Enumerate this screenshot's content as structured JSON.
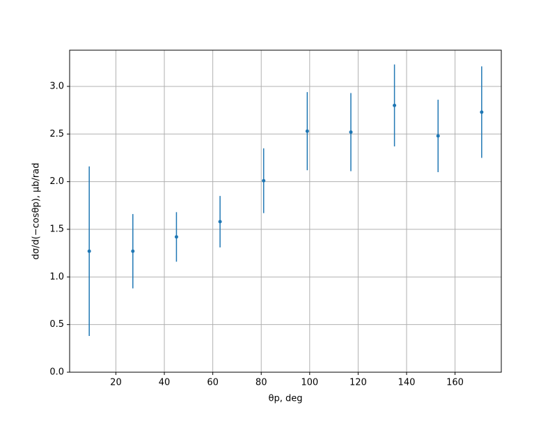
{
  "chart_data": {
    "type": "errorbar",
    "xlabel": "θp, deg",
    "ylabel": "dσ/d(−cosθp), μb/rad",
    "x": [
      9,
      27,
      45,
      63,
      81,
      99,
      117,
      135,
      153,
      171
    ],
    "values": [
      1.27,
      1.27,
      1.42,
      1.58,
      2.01,
      2.53,
      2.52,
      2.8,
      2.48,
      2.73
    ],
    "errors": [
      0.89,
      0.39,
      0.26,
      0.27,
      0.34,
      0.41,
      0.41,
      0.43,
      0.38,
      0.48
    ],
    "color": "#1f77b4",
    "xlim": [
      0.9,
      179.1
    ],
    "ylim": [
      0,
      3.38
    ],
    "xticks": [
      20,
      40,
      60,
      80,
      100,
      120,
      140,
      160
    ],
    "yticks": [
      {
        "value": 0,
        "label": "0.0"
      },
      {
        "value": 0.5,
        "label": "0.5"
      },
      {
        "value": 1,
        "label": "1.0"
      },
      {
        "value": 1.5,
        "label": "1.5"
      },
      {
        "value": 2,
        "label": "2.0"
      },
      {
        "value": 2.5,
        "label": "2.5"
      },
      {
        "value": 3,
        "label": "3.0"
      }
    ],
    "grid": true
  }
}
